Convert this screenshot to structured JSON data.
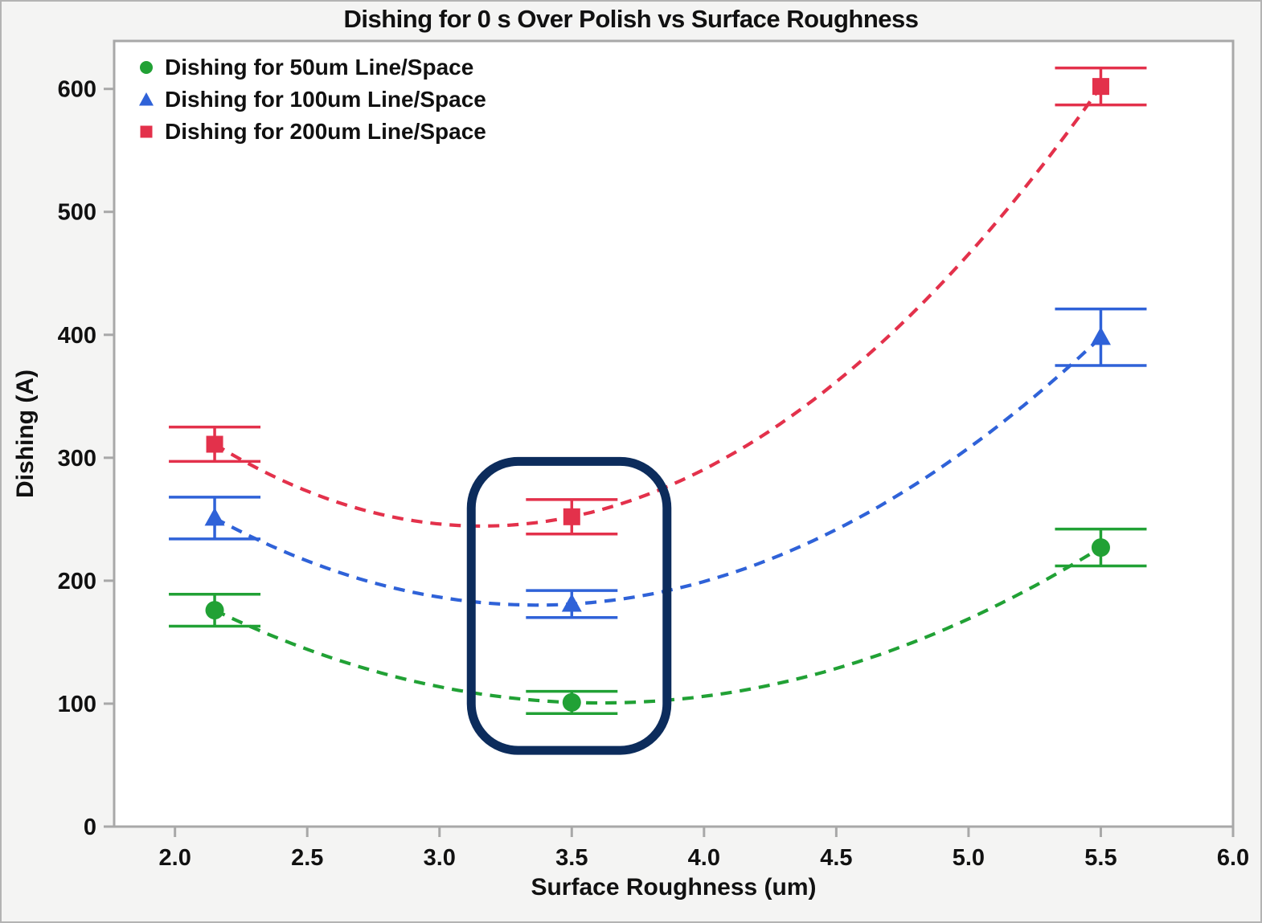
{
  "figure": {
    "background": "#f4f4f3",
    "border_color": "#b3b3b3",
    "plot_background": "#ffffff",
    "axis_color": "#a8a8a8",
    "text_color": "#111111"
  },
  "chart_data": {
    "type": "scatter",
    "title": "Dishing for 0 s Over Polish vs Surface Roughness",
    "xlabel": "Surface Roughness (um)",
    "ylabel": "Dishing (A)",
    "xlim": [
      1.77,
      6.0
    ],
    "ylim": [
      0,
      639
    ],
    "x_ticks": [
      "2.0",
      "2.5",
      "3.0",
      "3.5",
      "4.0",
      "4.5",
      "5.0",
      "5.5",
      "6.0"
    ],
    "x_tick_values": [
      2.0,
      2.5,
      3.0,
      3.5,
      4.0,
      4.5,
      5.0,
      5.5,
      6.0
    ],
    "y_ticks": [
      "0",
      "100",
      "200",
      "300",
      "400",
      "500",
      "600"
    ],
    "y_tick_values": [
      0,
      100,
      200,
      300,
      400,
      500,
      600
    ],
    "grid": false,
    "legend_position": "top-left-inside",
    "trend_style": "quadratic-dashed-through-points",
    "series": [
      {
        "name": "Dishing for 50um Line/Space",
        "marker": "circle",
        "color": "#21a135",
        "x": [
          2.15,
          3.5,
          5.5
        ],
        "y": [
          176,
          101,
          227
        ],
        "yerr": [
          13,
          9,
          15
        ]
      },
      {
        "name": "Dishing for 100um Line/Space",
        "marker": "triangle",
        "color": "#2f62d8",
        "x": [
          2.15,
          3.5,
          5.5
        ],
        "y": [
          251,
          181,
          398
        ],
        "yerr": [
          17,
          11,
          23
        ]
      },
      {
        "name": "Dishing for 200um Line/Space",
        "marker": "square",
        "color": "#e3314b",
        "x": [
          2.15,
          3.5,
          5.5
        ],
        "y": [
          311,
          252,
          602
        ],
        "yerr": [
          14,
          14,
          15
        ]
      }
    ],
    "annotation_box": {
      "x_min": 3.12,
      "x_max": 3.86,
      "y_min": 62,
      "y_max": 297,
      "color": "#0c2c5c"
    }
  }
}
